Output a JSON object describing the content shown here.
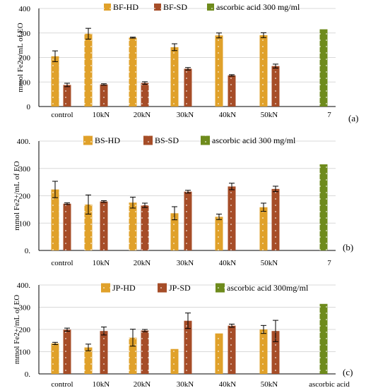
{
  "chart_data": [
    {
      "type": "bar",
      "ylabel": "mmol Fe2+/mL of EO",
      "ylim": [
        0,
        400
      ],
      "yticks": [
        "0",
        "100",
        "200",
        "300",
        "400"
      ],
      "categories": [
        "control",
        "10kN",
        "20kN",
        "30kN",
        "40kN",
        "50kN",
        "7"
      ],
      "panel_label": "(a)",
      "series": [
        {
          "name": "BF-HD",
          "color": "#E0A12A",
          "values": [
            205,
            297,
            281,
            242,
            290,
            291,
            null
          ],
          "errors": [
            22,
            22,
            2,
            14,
            10,
            10,
            null
          ]
        },
        {
          "name": "BF-SD",
          "color": "#A64D28",
          "values": [
            88,
            90,
            96,
            154,
            127,
            165,
            null
          ],
          "errors": [
            7,
            3,
            5,
            5,
            3,
            8,
            null
          ]
        },
        {
          "name": "ascorbic acid 300 mg/ml",
          "color": "#6E8B1C",
          "values": [
            null,
            null,
            null,
            null,
            null,
            null,
            315
          ],
          "errors": [
            null,
            null,
            null,
            null,
            null,
            null,
            null
          ]
        }
      ]
    },
    {
      "type": "bar",
      "ylabel": "mmol Fe2+/mL of EO",
      "ylim": [
        0,
        400
      ],
      "yticks": [
        "0.",
        "100",
        "200",
        "300",
        "400."
      ],
      "categories": [
        "control",
        "10kN",
        "20kN",
        "30kN",
        "40kN",
        "50kN",
        "7"
      ],
      "panel_label": "(b)",
      "series": [
        {
          "name": "BS-HD",
          "color": "#E0A12A",
          "values": [
            223,
            168,
            175,
            136,
            123,
            158,
            null
          ],
          "errors": [
            30,
            35,
            20,
            24,
            10,
            15,
            null
          ]
        },
        {
          "name": "BS-SD",
          "color": "#A64D28",
          "values": [
            171,
            179,
            165,
            215,
            234,
            225,
            null
          ],
          "errors": [
            3,
            3,
            8,
            5,
            12,
            10,
            null
          ]
        },
        {
          "name": "ascorbic acid 300 mg/ml",
          "color": "#6E8B1C",
          "values": [
            null,
            null,
            null,
            null,
            null,
            null,
            315
          ],
          "errors": [
            null,
            null,
            null,
            null,
            null,
            null,
            null
          ]
        }
      ]
    },
    {
      "type": "bar",
      "ylabel": "mmol Fe2+/mL of EO",
      "ylim": [
        0,
        400
      ],
      "yticks": [
        "0.",
        "100",
        "200",
        "300",
        "400."
      ],
      "categories": [
        "control",
        "10kN",
        "20kN",
        "30kN",
        "40kN",
        "50kN",
        "ascorbic acid"
      ],
      "panel_label": "(c)",
      "series": [
        {
          "name": "JP-HD",
          "color": "#E0A12A",
          "values": [
            137,
            119,
            163,
            112,
            182,
            200,
            null
          ],
          "errors": [
            5,
            15,
            38,
            0,
            0,
            18,
            null
          ]
        },
        {
          "name": "JP-SD",
          "color": "#A64D28",
          "values": [
            199,
            193,
            195,
            239,
            217,
            193,
            null
          ],
          "errors": [
            7,
            18,
            5,
            35,
            7,
            48,
            null
          ]
        },
        {
          "name": "ascorbic acid 300mg/ml",
          "color": "#6E8B1C",
          "values": [
            null,
            null,
            null,
            null,
            null,
            null,
            315
          ],
          "errors": [
            null,
            null,
            null,
            null,
            null,
            null,
            null
          ]
        }
      ]
    }
  ]
}
